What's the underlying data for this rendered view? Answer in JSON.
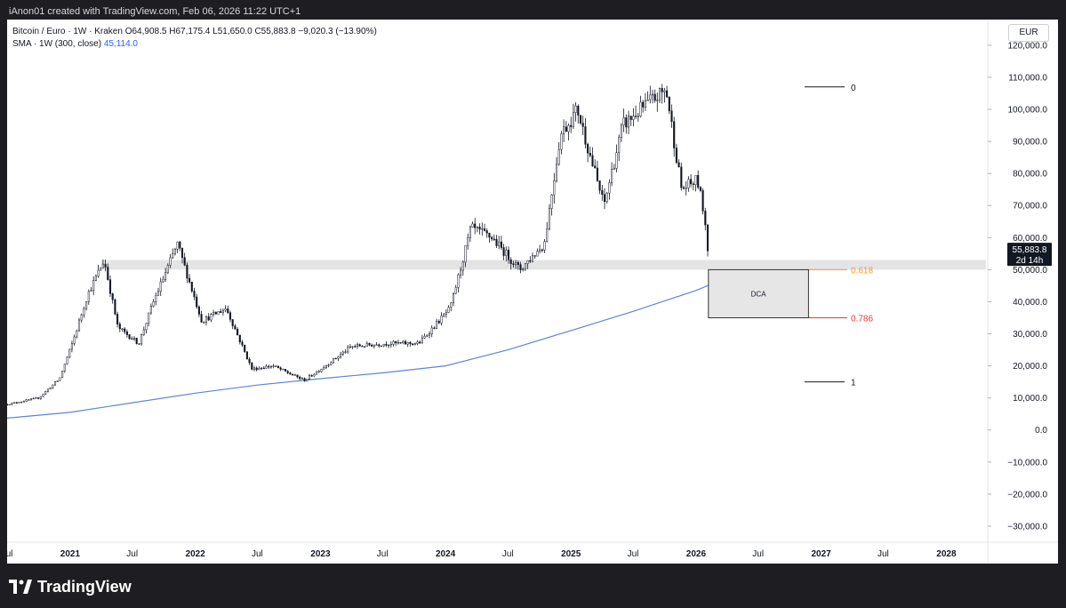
{
  "header": {
    "attribution": "iAnon01 created with TradingView.com, Feb 06, 2026 11:22 UTC+1"
  },
  "legend": {
    "symbol_line": "Bitcoin / Euro · 1W · Kraken",
    "open": "O64,908.5",
    "high": "H67,175.4",
    "low": "L51,650.0",
    "close": "C55,883.8",
    "change": "−9,020.3 (−13.90%)",
    "sma_label": "SMA · 1W (300, close)",
    "sma_value": "45,114.0"
  },
  "currency": "EUR",
  "price_tag": {
    "price": "55,883.8",
    "countdown": "2d 14h"
  },
  "footer": {
    "brand": "TradingView"
  },
  "colors": {
    "candle": "#131722",
    "sma": "#5b85d6",
    "zone": "#e4e4e4",
    "fib_618": "#f59a23",
    "fib_786": "#e53935"
  },
  "chart_data": {
    "type": "line",
    "y_axis": {
      "range": [
        -35000,
        128000
      ],
      "ticks": [
        -30000,
        -20000,
        -10000,
        0,
        10000,
        20000,
        30000,
        40000,
        50000,
        60000,
        70000,
        80000,
        90000,
        100000,
        110000,
        120000
      ],
      "tick_labels": [
        "−30,000.0",
        "−20,000.0",
        "−10,000.0",
        "0.0",
        "10,000.0",
        "20,000.0",
        "30,000.0",
        "40,000.0",
        "50,000.0",
        "60,000.0",
        "70,000.0",
        "80,000.0",
        "90,000.0",
        "100,000.0",
        "110,000.0",
        "120,000.0"
      ]
    },
    "x_axis": {
      "range": [
        "2020-07-01",
        "2028-05-01"
      ],
      "ticks": [
        "2020-07-01",
        "2021-01-01",
        "2021-07-01",
        "2022-01-01",
        "2022-07-01",
        "2023-01-01",
        "2023-07-01",
        "2024-01-01",
        "2024-07-01",
        "2025-01-01",
        "2025-07-01",
        "2026-01-01",
        "2026-07-01",
        "2027-01-01",
        "2027-07-01",
        "2028-01-01"
      ],
      "tick_labels": [
        "Jul",
        "2021",
        "Jul",
        "2022",
        "Jul",
        "2023",
        "Jul",
        "2024",
        "Jul",
        "2025",
        "Jul",
        "2026",
        "Jul",
        "2027",
        "Jul",
        "2028"
      ]
    },
    "series": [
      {
        "name": "Bitcoin / Euro",
        "style": "candles",
        "x": [
          "2020-07-01",
          "2020-10-01",
          "2020-12-01",
          "2021-01-10",
          "2021-02-20",
          "2021-04-10",
          "2021-05-20",
          "2021-07-20",
          "2021-09-01",
          "2021-11-10",
          "2022-01-20",
          "2022-04-01",
          "2022-06-15",
          "2022-08-15",
          "2022-11-15",
          "2023-01-15",
          "2023-04-01",
          "2023-07-15",
          "2023-10-15",
          "2024-01-15",
          "2024-03-15",
          "2024-05-15",
          "2024-08-05",
          "2024-10-15",
          "2024-12-01",
          "2025-01-20",
          "2025-04-07",
          "2025-06-01",
          "2025-08-15",
          "2025-10-06",
          "2025-11-20",
          "2026-01-05",
          "2026-01-25",
          "2026-02-06"
        ],
        "values": [
          8000,
          10000,
          16000,
          28000,
          42000,
          53000,
          32000,
          27000,
          40000,
          58000,
          34000,
          38000,
          19000,
          20000,
          15500,
          20000,
          26000,
          27000,
          27000,
          38000,
          63000,
          60000,
          50000,
          58000,
          92000,
          100000,
          70000,
          95000,
          102000,
          106000,
          75000,
          78000,
          67000,
          55883.8
        ]
      },
      {
        "name": "SMA",
        "style": "line",
        "x": [
          "2020-07-01",
          "2021-01-01",
          "2021-07-01",
          "2022-01-01",
          "2022-07-01",
          "2023-01-01",
          "2023-07-01",
          "2024-01-01",
          "2024-07-01",
          "2025-01-01",
          "2025-07-01",
          "2026-01-01",
          "2026-02-06"
        ],
        "values": [
          3700,
          5500,
          8500,
          11500,
          14000,
          16000,
          17800,
          20000,
          25000,
          31000,
          37000,
          43500,
          45114
        ]
      }
    ],
    "price_zone": {
      "top": 53000,
      "bottom": 50000
    },
    "fibonacci": [
      {
        "label": "0",
        "value": 107000
      },
      {
        "label": "0.618",
        "value": 50000
      },
      {
        "label": "0.786",
        "value": 35000
      },
      {
        "label": "1",
        "value": 15000
      }
    ],
    "dca_box": {
      "label": "DCA",
      "from": "2026-02-06",
      "to": "2026-11-25",
      "top": 50000,
      "bottom": 35000
    },
    "grid": false,
    "legend_position": "top-left"
  }
}
